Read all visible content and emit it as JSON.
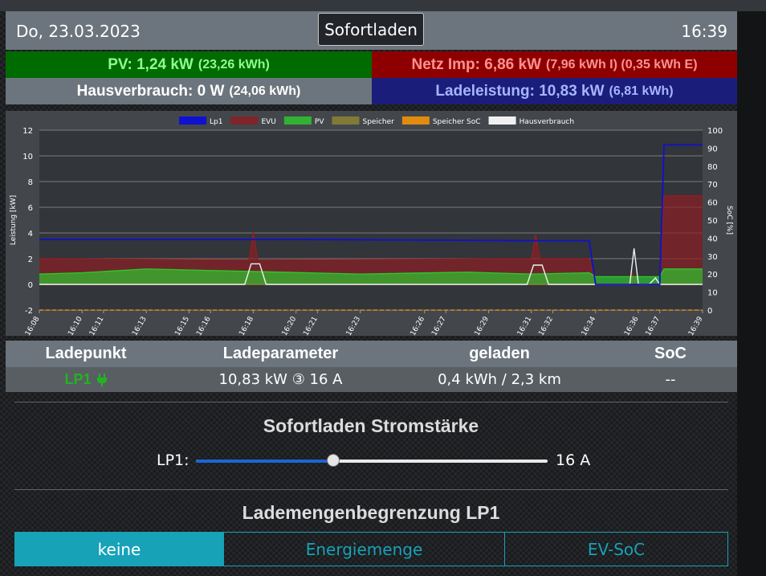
{
  "header": {
    "date": "Do, 23.03.2023",
    "mode_button": "Sofortladen",
    "time": "16:39"
  },
  "status": {
    "pv_label": "PV: 1,24 kW",
    "pv_detail": "(23,26 kWh)",
    "netz_label": "Netz Imp: 6,86 kW",
    "netz_detail": "(7,96 kWh I) (0,35 kWh E)",
    "haus_label": "Hausverbrauch: 0 W",
    "haus_detail": "(24,06 kWh)",
    "lade_label": "Ladeleistung: 10,83 kW",
    "lade_detail": "(6,81 kWh)"
  },
  "colors": {
    "pv_bg": "#006b00",
    "netz_bg": "#8e0000",
    "lade_bg": "#1a1e7a",
    "accent": "#17a2b8",
    "lp1_green": "#22b422"
  },
  "chart_data": {
    "type": "area",
    "ylabel": "Leistung [kW]",
    "y2label": "SoC [%]",
    "ylim": [
      -2,
      12
    ],
    "yticks": [
      -2,
      0,
      2,
      4,
      6,
      8,
      10,
      12
    ],
    "y2lim": [
      0,
      100
    ],
    "y2ticks": [
      0,
      10,
      20,
      30,
      40,
      50,
      60,
      70,
      80,
      90,
      100
    ],
    "xticks": [
      "16:08",
      "16:10",
      "16:11",
      "16:13",
      "16:15",
      "16:16",
      "16:18",
      "16:20",
      "16:21",
      "16:23",
      "16:26",
      "16:27",
      "16:29",
      "16:31",
      "16:32",
      "16:34",
      "16:36",
      "16:37",
      "16:39"
    ],
    "grid": true,
    "legend_position": "top",
    "series": [
      {
        "name": "Lp1",
        "color": "#1010d0",
        "fill": false,
        "x": [
          "16:08",
          "16:18",
          "16:20",
          "16:31",
          "16:33.7",
          "16:34.0",
          "16:37.0",
          "16:37.2",
          "16:39"
        ],
        "values": [
          3.5,
          3.5,
          3.5,
          3.4,
          3.4,
          0,
          0,
          10.85,
          10.85
        ]
      },
      {
        "name": "EVU",
        "color": "#8b2024",
        "fill": true,
        "x": [
          "16:08",
          "16:17.8",
          "16:18.0",
          "16:18.2",
          "16:25",
          "16:31.0",
          "16:31.2",
          "16:31.4",
          "16:33.7",
          "16:34.0",
          "16:35.5",
          "16:35.7",
          "16:35.9",
          "16:37.0",
          "16:37.2",
          "16:39"
        ],
        "values": [
          2.0,
          1.9,
          4.1,
          1.9,
          1.95,
          2.0,
          3.9,
          2.0,
          2.0,
          0,
          0,
          1.0,
          0,
          0,
          6.9,
          6.9
        ]
      },
      {
        "name": "PV",
        "color": "#2ec52e",
        "fill": true,
        "x": [
          "16:08",
          "16:10",
          "16:13",
          "16:18",
          "16:23",
          "16:28",
          "16:31",
          "16:33.7",
          "16:34.0",
          "16:37.0",
          "16:37.2",
          "16:39"
        ],
        "values": [
          0.8,
          0.9,
          1.2,
          1.0,
          0.8,
          0.95,
          0.8,
          0.9,
          0.6,
          0.6,
          1.2,
          1.2
        ]
      },
      {
        "name": "Speicher",
        "color": "#8b8432",
        "fill": true,
        "x": [
          "16:08",
          "16:39"
        ],
        "values": [
          0,
          0
        ]
      },
      {
        "name": "Speicher SoC",
        "color": "#e08a10",
        "fill": false,
        "x": [
          "16:08",
          "16:39"
        ],
        "values": [
          0,
          0
        ]
      },
      {
        "name": "Hausverbrauch",
        "color": "#f0f0f0",
        "fill": false,
        "x": [
          "16:08",
          "16:17.6",
          "16:17.9",
          "16:18.3",
          "16:18.6",
          "16:30.8",
          "16:31.1",
          "16:31.5",
          "16:31.8",
          "16:35.6",
          "16:35.8",
          "16:36.0",
          "16:36.5",
          "16:36.8",
          "16:37.0",
          "16:39"
        ],
        "values": [
          0,
          0,
          1.6,
          1.6,
          0,
          0,
          1.5,
          1.5,
          0,
          0,
          2.8,
          0,
          0,
          0.5,
          0,
          0
        ]
      }
    ]
  },
  "table": {
    "headers": [
      "Ladepunkt",
      "Ladeparameter",
      "geladen",
      "SoC"
    ],
    "row": {
      "ladepunkt": "LP1",
      "ladeparameter": "10,83 kW ③ 16 A",
      "geladen": "0,4 kWh / 2,3 km",
      "soc": "--"
    }
  },
  "current_section": {
    "title": "Sofortladen Stromstärke",
    "slider_label": "LP1:",
    "slider_value": "16 A",
    "slider_fraction": 0.39
  },
  "limit_section": {
    "title": "Lademengenbegrenzung LP1",
    "options": [
      "keine",
      "Energiemenge",
      "EV-SoC"
    ],
    "selected": "keine"
  }
}
